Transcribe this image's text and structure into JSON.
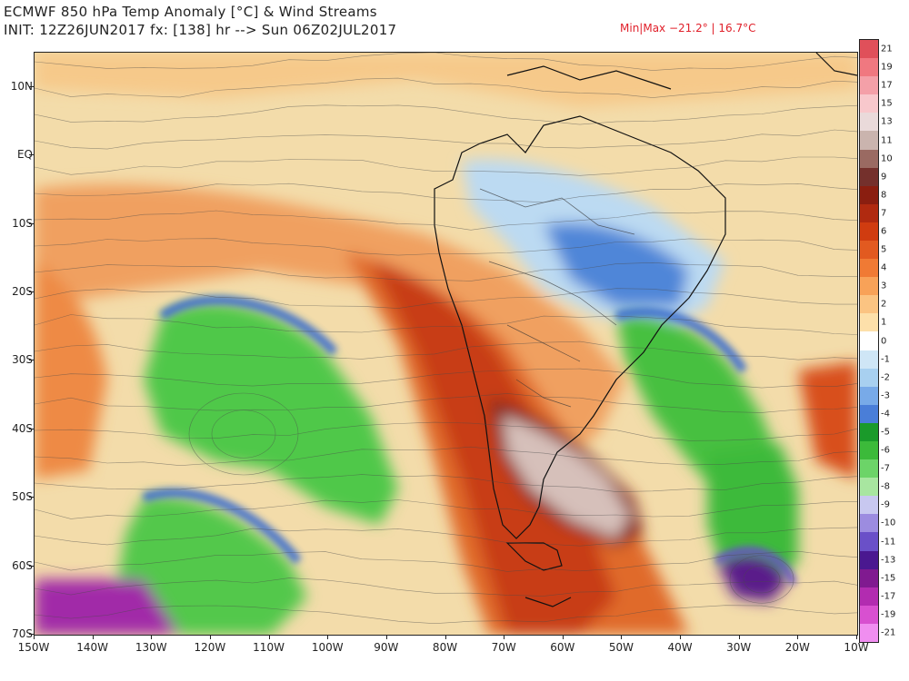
{
  "header": {
    "title": "ECMWF 850 hPa Temp Anomaly [°C] & Wind Streams",
    "init": "INIT: 12Z26JUN2017 fx: [138] hr --> Sun 06Z02JUL2017",
    "minmax": "Min|Max −21.2° | 16.7°C"
  },
  "map": {
    "lon_range": [
      -150,
      -10
    ],
    "lat_range": [
      -70,
      15
    ],
    "y_labels": [
      {
        "lat": 10,
        "text": "10N"
      },
      {
        "lat": 0,
        "text": "EQ"
      },
      {
        "lat": -10,
        "text": "10S"
      },
      {
        "lat": -20,
        "text": "20S"
      },
      {
        "lat": -30,
        "text": "30S"
      },
      {
        "lat": -40,
        "text": "40S"
      },
      {
        "lat": -50,
        "text": "50S"
      },
      {
        "lat": -60,
        "text": "60S"
      },
      {
        "lat": -70,
        "text": "70S"
      }
    ],
    "x_labels": [
      {
        "lon": -150,
        "text": "150W"
      },
      {
        "lon": -140,
        "text": "140W"
      },
      {
        "lon": -130,
        "text": "130W"
      },
      {
        "lon": -120,
        "text": "120W"
      },
      {
        "lon": -110,
        "text": "110W"
      },
      {
        "lon": -100,
        "text": "100W"
      },
      {
        "lon": -90,
        "text": "90W"
      },
      {
        "lon": -80,
        "text": "80W"
      },
      {
        "lon": -70,
        "text": "70W"
      },
      {
        "lon": -60,
        "text": "60W"
      },
      {
        "lon": -50,
        "text": "50W"
      },
      {
        "lon": -40,
        "text": "40W"
      },
      {
        "lon": -30,
        "text": "30W"
      },
      {
        "lon": -20,
        "text": "20W"
      },
      {
        "lon": -10,
        "text": "10W"
      }
    ]
  },
  "colorbar": {
    "labels": [
      "21",
      "19",
      "17",
      "15",
      "13",
      "11",
      "10",
      "9",
      "8",
      "7",
      "6",
      "5",
      "4",
      "3",
      "2",
      "1",
      "0",
      "-1",
      "-2",
      "-3",
      "-4",
      "-5",
      "-6",
      "-7",
      "-8",
      "-9",
      "-10",
      "-11",
      "-13",
      "-15",
      "-17",
      "-19",
      "-21"
    ],
    "colors": [
      "#e0505a",
      "#f07880",
      "#f4a0a8",
      "#f8c8cc",
      "#eadada",
      "#cab4ae",
      "#9a6a62",
      "#74302c",
      "#8a1e10",
      "#b02a10",
      "#d03c10",
      "#e25a20",
      "#f07a34",
      "#f8a258",
      "#fbc482",
      "#fde0aa",
      "#ffffff",
      "#cfe6f6",
      "#a8d0f0",
      "#78aae8",
      "#4a7ed8",
      "#1a9a2a",
      "#3cba3a",
      "#6cd468",
      "#a8e6a0",
      "#c8c8f0",
      "#9c8ce0",
      "#6a50c8",
      "#4a1890",
      "#801a90",
      "#b22cb0",
      "#d850d0",
      "#f08ef0"
    ]
  }
}
